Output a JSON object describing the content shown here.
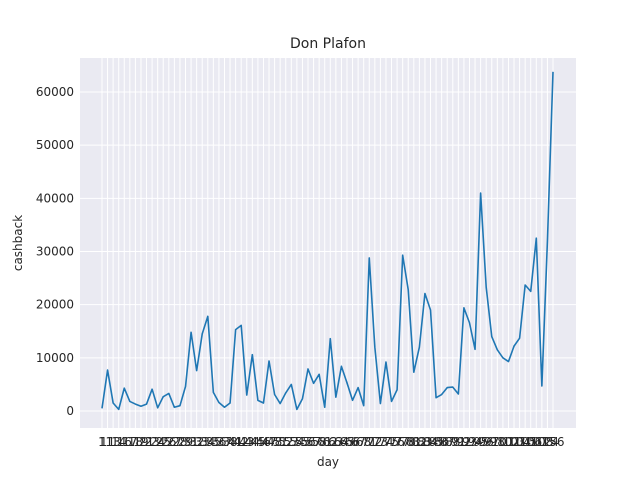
{
  "chart_data": {
    "type": "line",
    "title": "Don Plafon",
    "x_label": "day",
    "y_label": "cashback",
    "categories": [
      1,
      11,
      13,
      14,
      16,
      17,
      18,
      19,
      21,
      23,
      24,
      25,
      26,
      27,
      28,
      29,
      31,
      32,
      33,
      34,
      35,
      36,
      37,
      38,
      41,
      42,
      43,
      44,
      45,
      46,
      47,
      48,
      51,
      52,
      53,
      54,
      55,
      56,
      57,
      58,
      61,
      62,
      63,
      64,
      65,
      66,
      67,
      68,
      71,
      72,
      73,
      74,
      75,
      76,
      77,
      78,
      81,
      82,
      83,
      84,
      85,
      86,
      87,
      88,
      91,
      92,
      93,
      94,
      95,
      96,
      97,
      98,
      101,
      102,
      103,
      104,
      105,
      106,
      107,
      108,
      124,
      156
    ],
    "series": [
      {
        "name": "cashback",
        "color": "#1f77b4",
        "values": [
          500,
          7700,
          1500,
          300,
          4300,
          1800,
          1300,
          900,
          1300,
          4100,
          600,
          2700,
          3300,
          700,
          1000,
          4600,
          14800,
          7600,
          14500,
          17800,
          3500,
          1600,
          700,
          1500,
          15300,
          16100,
          3000,
          10600,
          2000,
          1500,
          9400,
          3100,
          1400,
          3400,
          5000,
          300,
          2300,
          7900,
          5200,
          6900,
          700,
          13600,
          2600,
          8400,
          5300,
          2000,
          4400,
          1000,
          28800,
          12000,
          1400,
          9200,
          1800,
          4000,
          29300,
          22800,
          7300,
          12000,
          22100,
          19000,
          2500,
          3100,
          4400,
          4500,
          3200,
          19400,
          16600,
          11600,
          41000,
          23300,
          14000,
          11500,
          10000,
          9300,
          12200,
          13700,
          23700,
          22500,
          32500,
          4700,
          32000,
          63800
        ]
      }
    ],
    "ylim": [
      -3200,
      66400
    ],
    "yticks": [
      0,
      10000,
      20000,
      30000,
      40000,
      50000,
      60000
    ],
    "grid": true
  }
}
